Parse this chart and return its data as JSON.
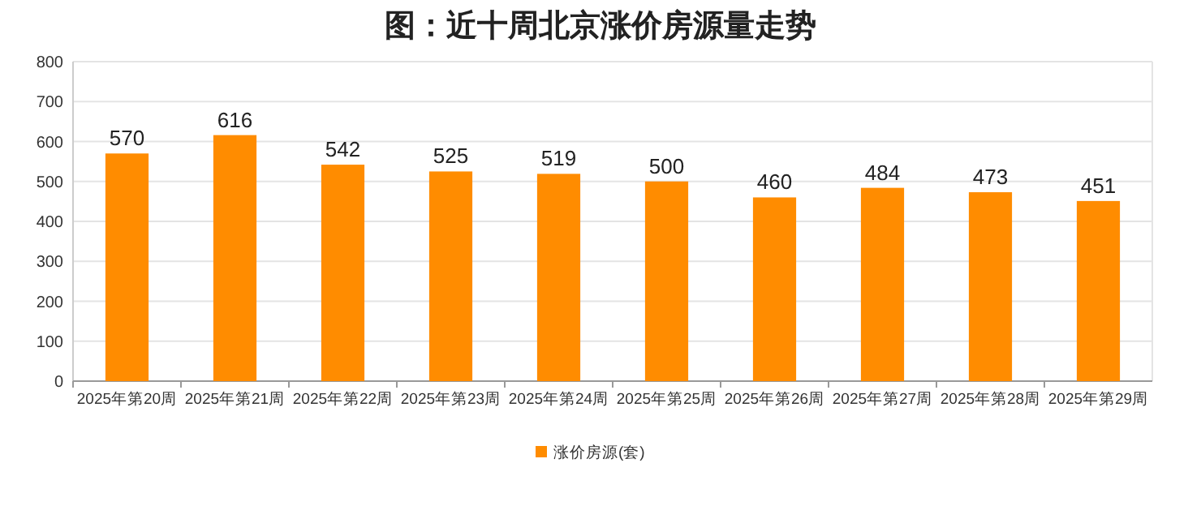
{
  "chart_data": {
    "type": "bar",
    "title": "图：近十周北京涨价房源量走势",
    "categories": [
      "2025年第20周",
      "2025年第21周",
      "2025年第22周",
      "2025年第23周",
      "2025年第24周",
      "2025年第25周",
      "2025年第26周",
      "2025年第27周",
      "2025年第28周",
      "2025年第29周"
    ],
    "series": [
      {
        "name": "涨价房源(套)",
        "color": "#ff8c00",
        "values": [
          570,
          616,
          542,
          525,
          519,
          500,
          460,
          484,
          473,
          451
        ]
      }
    ],
    "ylim": [
      0,
      800
    ],
    "yticks": [
      0,
      100,
      200,
      300,
      400,
      500,
      600,
      700,
      800
    ],
    "grid": "y",
    "legend": "bottom",
    "data_labels": true
  }
}
